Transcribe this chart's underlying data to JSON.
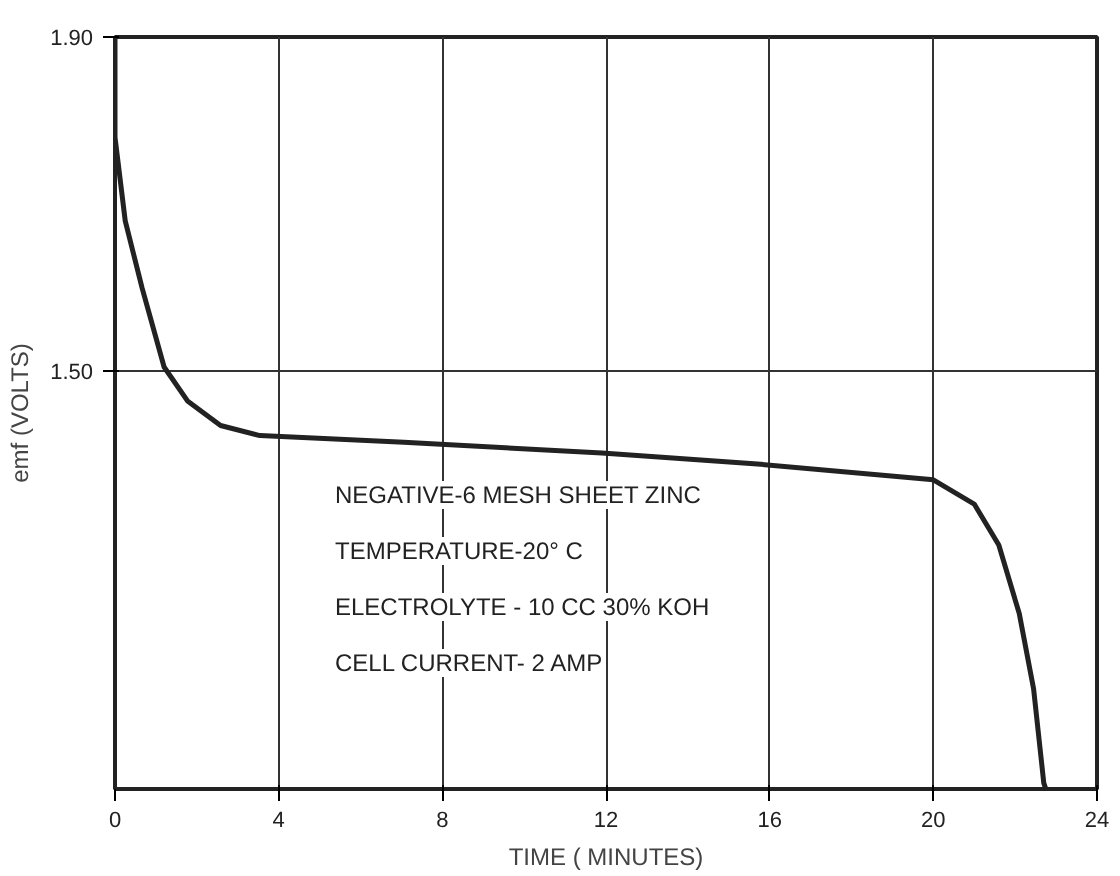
{
  "chart_data": {
    "type": "line",
    "xlabel": "TIME ( MINUTES)",
    "ylabel": "emf (VOLTS)",
    "x": [
      0,
      0,
      0.25,
      0.66,
      1.2,
      1.78,
      2.58,
      3.54,
      7.06,
      11.9,
      15.7,
      20.0,
      21.0,
      21.6,
      22.1,
      22.45,
      22.7,
      22.75
    ],
    "series": [
      {
        "color": "#222222",
        "values": [
          1.9,
          1.78,
          1.68,
          1.6,
          1.505,
          1.464,
          1.435,
          1.423,
          1.415,
          1.402,
          1.389,
          1.37,
          1.341,
          1.292,
          1.21,
          1.12,
          1.007,
          1.0
        ]
      }
    ],
    "xlim": [
      0,
      24
    ],
    "xticks": [
      0,
      4,
      8,
      12,
      16,
      20,
      24
    ],
    "ylim": [
      1.0,
      1.9
    ],
    "yticks": [
      {
        "value": 1.5,
        "label": "1.50"
      },
      {
        "value": 1.9,
        "label": "1.90"
      }
    ],
    "grid": true,
    "annotations": [
      "NEGATIVE-6 MESH SHEET ZINC",
      "TEMPERATURE-20° C",
      "ELECTROLYTE - 10 CC 30% KOH",
      "CELL CURRENT- 2 AMP"
    ]
  }
}
